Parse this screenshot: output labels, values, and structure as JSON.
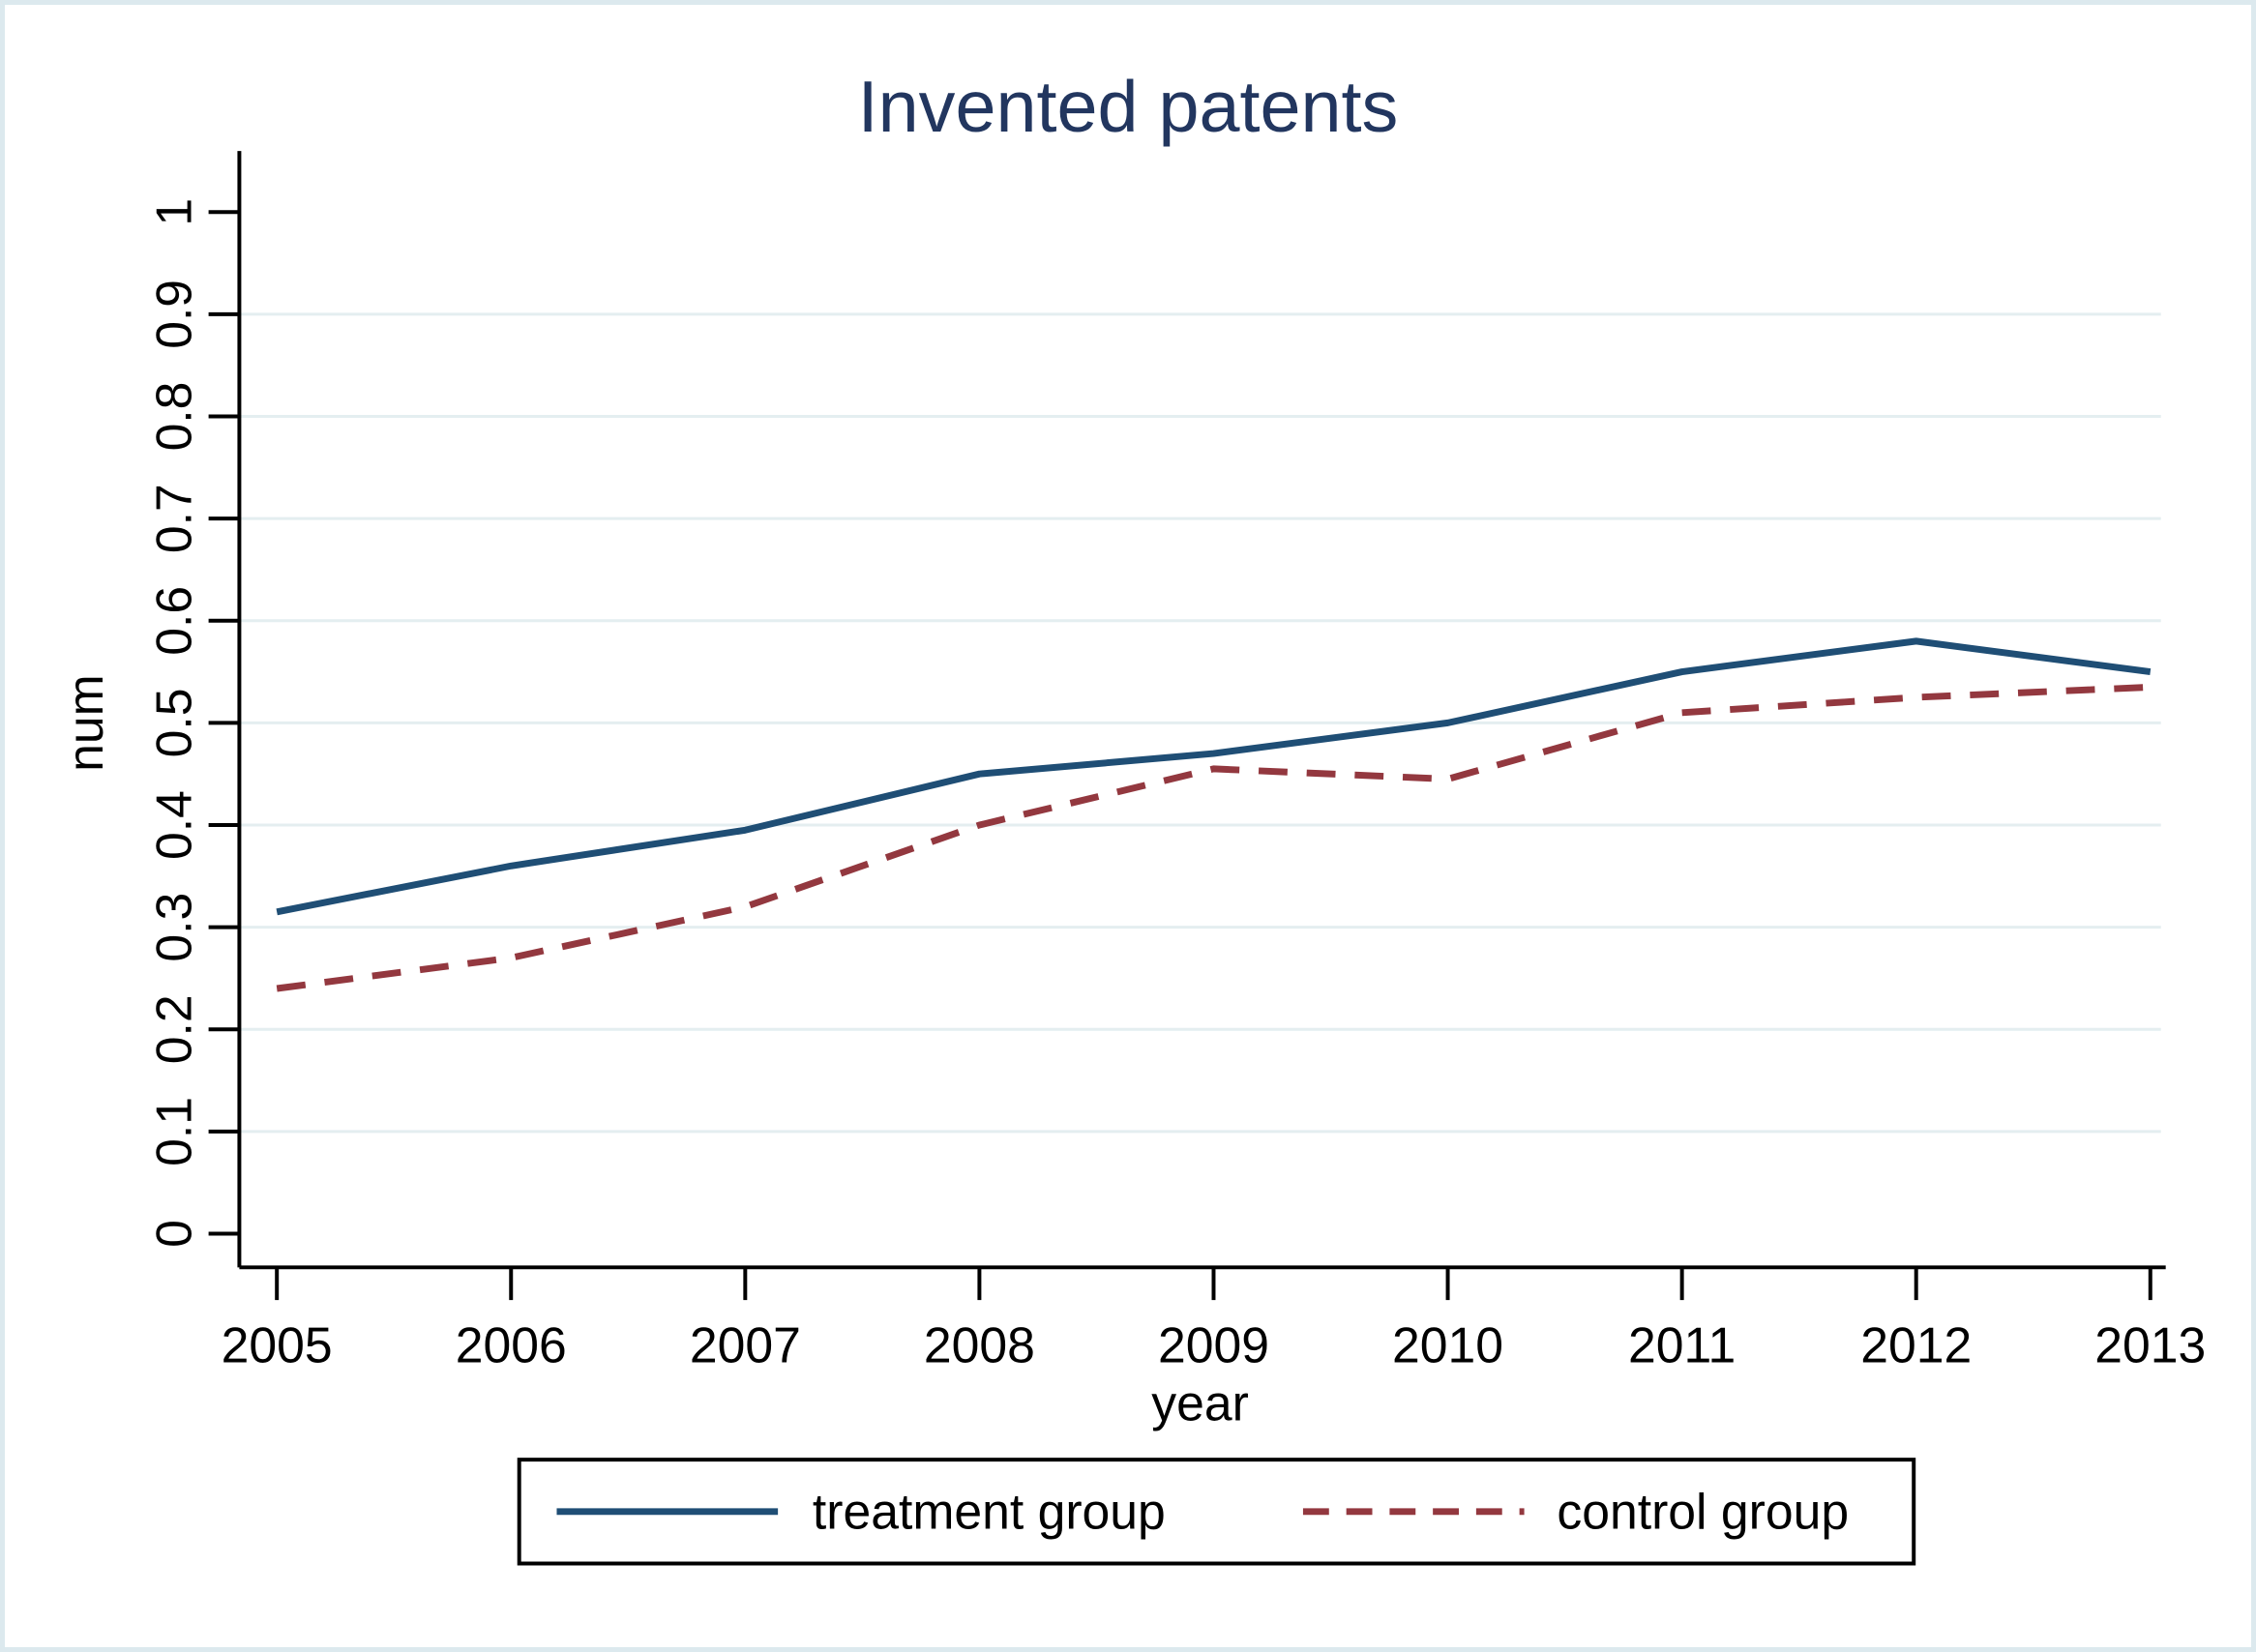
{
  "chart": {
    "title": "Invented patents",
    "title_color": "#22365f",
    "axis_color": "#000000",
    "grid_color": "#e4eef0",
    "background": "#ffffff",
    "frame_color": "#dce9ee",
    "y_axis": {
      "label": "num",
      "tick_labels": [
        "0",
        "0.1",
        "0.2",
        "0.3",
        "0.4",
        "0.5",
        "0.6",
        "0.7",
        "0.8",
        "0.9",
        "1"
      ],
      "tick_values": [
        0,
        0.1,
        0.2,
        0.3,
        0.4,
        0.5,
        0.6,
        0.7,
        0.8,
        0.9,
        1
      ],
      "grid_values": [
        0.1,
        0.2,
        0.3,
        0.4,
        0.5,
        0.6,
        0.7,
        0.8,
        0.9
      ]
    },
    "x_axis": {
      "label": "year",
      "tick_labels": [
        "2005",
        "2006",
        "2007",
        "2008",
        "2009",
        "2010",
        "2011",
        "2012",
        "2013"
      ],
      "tick_values": [
        2005,
        2006,
        2007,
        2008,
        2009,
        2010,
        2011,
        2012,
        2013
      ]
    },
    "legend": {
      "entries": [
        {
          "label": "treatment group",
          "color": "#1f4e75",
          "style": "solid"
        },
        {
          "label": "control group",
          "color": "#93383f",
          "style": "dashed"
        }
      ]
    }
  },
  "chart_data": {
    "type": "line",
    "title": "Invented patents",
    "xlabel": "year",
    "ylabel": "num",
    "x": [
      2005,
      2006,
      2007,
      2008,
      2009,
      2010,
      2011,
      2012,
      2013
    ],
    "series": [
      {
        "name": "treatment group",
        "color": "#1f4e75",
        "line_style": "solid",
        "values": [
          0.315,
          0.36,
          0.395,
          0.45,
          0.47,
          0.5,
          0.55,
          0.58,
          0.55
        ]
      },
      {
        "name": "control group",
        "color": "#93383f",
        "line_style": "dashed",
        "values": [
          0.24,
          0.27,
          0.32,
          0.4,
          0.455,
          0.445,
          0.51,
          0.525,
          0.535
        ]
      }
    ],
    "xlim": [
      2005,
      2013
    ],
    "ylim": [
      0,
      1
    ],
    "grid": true,
    "legend_position": "bottom"
  }
}
